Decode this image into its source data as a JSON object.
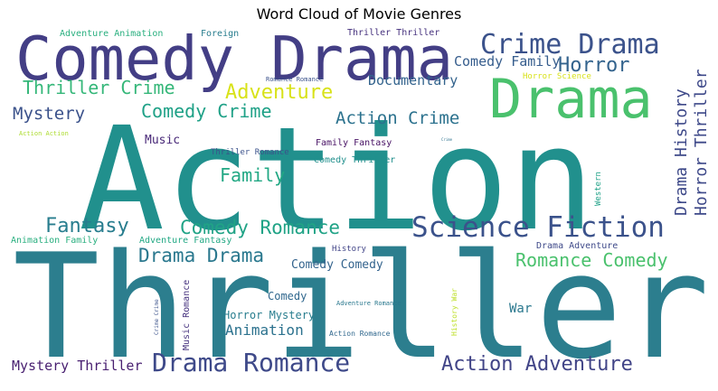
{
  "title": "Word Cloud of Movie Genres",
  "words": [
    {
      "text": "Action",
      "color": "#21908d"
    },
    {
      "text": "Thriller",
      "color": "#2c7e8e"
    },
    {
      "text": "Comedy Drama",
      "color": "#433e85"
    },
    {
      "text": "Drama",
      "color": "#4ac16d"
    },
    {
      "text": "Crime Drama",
      "color": "#3b528b"
    },
    {
      "text": "Horror",
      "color": "#33638d"
    },
    {
      "text": "Comedy Family",
      "color": "#365d8d"
    },
    {
      "text": "Adventure",
      "color": "#d8e219"
    },
    {
      "text": "Thriller Crime",
      "color": "#35b779"
    },
    {
      "text": "Documentary",
      "color": "#33638d"
    },
    {
      "text": "Mystery",
      "color": "#3b528b"
    },
    {
      "text": "Comedy Crime",
      "color": "#1fa187"
    },
    {
      "text": "Action Crime",
      "color": "#2c728e"
    },
    {
      "text": "Drama History",
      "color": "#3e4989"
    },
    {
      "text": "Horror Thriller",
      "color": "#3e4989"
    },
    {
      "text": "Music",
      "color": "#482878"
    },
    {
      "text": "Family Fantasy",
      "color": "#471164"
    },
    {
      "text": "Thriller Romance",
      "color": "#3b528b"
    },
    {
      "text": "Comedy Thriller",
      "color": "#21908d"
    },
    {
      "text": "Family",
      "color": "#22a884"
    },
    {
      "text": "Western",
      "color": "#1fa187"
    },
    {
      "text": "Fantasy",
      "color": "#287d8e"
    },
    {
      "text": "Comedy Romance",
      "color": "#20a386"
    },
    {
      "text": "Science Fiction",
      "color": "#3b528b"
    },
    {
      "text": "Drama Drama",
      "color": "#2a788e"
    },
    {
      "text": "Romance Comedy",
      "color": "#4ac16d"
    },
    {
      "text": "Animation Family",
      "color": "#29af7f"
    },
    {
      "text": "Adventure Fantasy",
      "color": "#22a884"
    },
    {
      "text": "History",
      "color": "#414487"
    },
    {
      "text": "Drama Adventure",
      "color": "#3e4989"
    },
    {
      "text": "Comedy Comedy",
      "color": "#33638d"
    },
    {
      "text": "Comedy",
      "color": "#31688e"
    },
    {
      "text": "Adventure Romance",
      "color": "#2a788e"
    },
    {
      "text": "History War",
      "color": "#bddf26"
    },
    {
      "text": "War",
      "color": "#2a788e"
    },
    {
      "text": "Horror Mystery",
      "color": "#287d8e"
    },
    {
      "text": "Music Romance",
      "color": "#46327e"
    },
    {
      "text": "Crime Crime",
      "color": "#3b528b"
    },
    {
      "text": "Animation",
      "color": "#2c728e"
    },
    {
      "text": "Action Romance",
      "color": "#31688e"
    },
    {
      "text": "Mystery Thriller",
      "color": "#481f70"
    },
    {
      "text": "Drama Romance",
      "color": "#3e4989"
    },
    {
      "text": "Action Adventure",
      "color": "#414487"
    },
    {
      "text": "Adventure Animation",
      "color": "#29af7f"
    },
    {
      "text": "Foreign",
      "color": "#287d8e"
    },
    {
      "text": "Thriller Thriller",
      "color": "#46327e"
    },
    {
      "text": "Romance Romance",
      "color": "#3b528b"
    },
    {
      "text": "Horror Science",
      "color": "#d8e219"
    },
    {
      "text": "Action Action",
      "color": "#addc30"
    },
    {
      "text": "Crime",
      "color": "#2c728e"
    }
  ]
}
